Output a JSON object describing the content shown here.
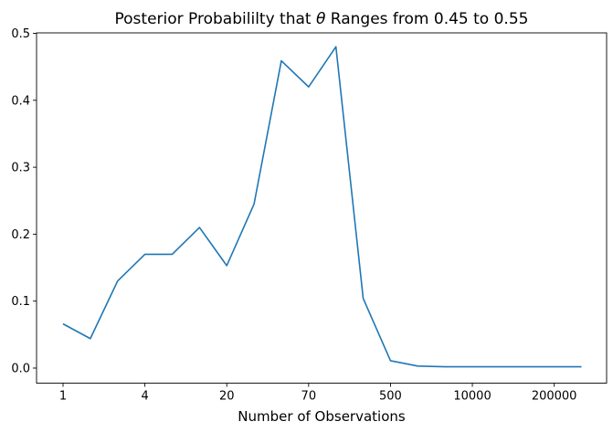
{
  "figure": {
    "title_pre": "Posterior Probabililty that ",
    "title_theta": "θ",
    "title_post": " Ranges from 0.45 to 0.55"
  },
  "chart_data": {
    "type": "line",
    "title": "Posterior Probabililty that θ Ranges from 0.45 to 0.55",
    "xlabel": "Number of Observations",
    "ylabel": "",
    "x_axis": {
      "kind": "categorical-equal-spacing (log-like sample sizes)",
      "n_points": 20,
      "tick_indices": [
        0,
        3,
        6,
        9,
        12,
        15,
        18
      ],
      "tick_labels": [
        "1",
        "4",
        "20",
        "70",
        "500",
        "10000",
        "200000"
      ]
    },
    "y_axis": {
      "tick_values": [
        0.0,
        0.1,
        0.2,
        0.3,
        0.4,
        0.5
      ],
      "tick_labels": [
        "0.0",
        "0.1",
        "0.2",
        "0.3",
        "0.4",
        "0.5"
      ],
      "ylim": [
        -0.023,
        0.502
      ]
    },
    "grid": false,
    "legend": "none",
    "line_color": "#1f77b4",
    "series": [
      {
        "name": "posterior-probability",
        "values": [
          0.066,
          0.044,
          0.13,
          0.17,
          0.17,
          0.21,
          0.153,
          0.245,
          0.459,
          0.42,
          0.48,
          0.104,
          0.011,
          0.003,
          0.002,
          0.002,
          0.002,
          0.002,
          0.002,
          0.002
        ]
      }
    ]
  }
}
